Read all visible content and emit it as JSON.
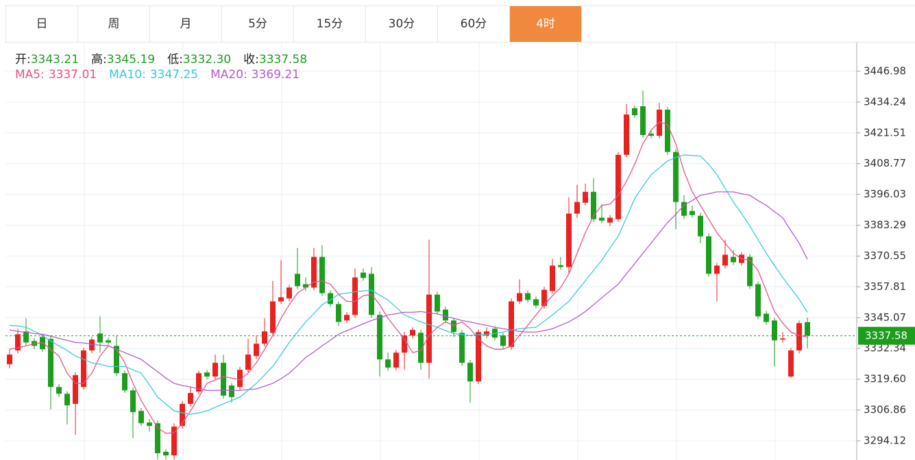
{
  "tabs": {
    "items": [
      "日",
      "周",
      "月",
      "5分",
      "15分",
      "30分",
      "60分",
      "4时"
    ],
    "active": 7
  },
  "chart_data": {
    "type": "candlestick",
    "ohlc_labels": [
      "开:",
      "高:",
      "低:",
      "收:"
    ],
    "last_labels": [
      "3343.21",
      "3345.19",
      "3332.30",
      "3337.58"
    ],
    "up_color": "#e8221f",
    "down_color": "#1c9e1c",
    "price_line_color": "#1c9e1c",
    "ylim": [
      3286.19,
      3458.87
    ],
    "yticks": [
      3294.12,
      3306.86,
      {
        "value": 3319.6,
        "label": "3319.60"
      },
      3332.34,
      3345.07,
      3357.81,
      3370.55,
      3383.29,
      3396.03,
      3408.77,
      3421.51,
      3434.24,
      3446.98
    ],
    "grid": true,
    "open": [
      3325.8,
      3331.5,
      3339.4,
      3335.4,
      3337.1,
      3336.3,
      3316.4,
      3313.6,
      3309.4,
      3316.4,
      3331.5,
      3338.5,
      3335.7,
      3333.4,
      3322.1,
      3315.0,
      3306.5,
      3301.7,
      3301.4,
      3289.6,
      3288.1,
      3300.3,
      3309.4,
      3314.5,
      3322.4,
      3320.7,
      3326.4,
      3317.0,
      3316.4,
      3323.5,
      3329.2,
      3334.3,
      3338.8,
      3351.8,
      3353.0,
      3363.2,
      3358.9,
      3357.5,
      3370.2,
      3355.2,
      3350.7,
      3343.9,
      3346.2,
      3363.7,
      3363.2,
      3346.2,
      3327.8,
      3324.4,
      3330.6,
      3337.7,
      3338.8,
      3326.4,
      3354.6,
      3348.4,
      3343.9,
      3338.8,
      3326.4,
      3318.7,
      3337.7,
      3340.5,
      3337.7,
      3332.9,
      3351.8,
      3355.2,
      3352.7,
      3349.9,
      3356.1,
      3366.8,
      3366.0,
      3388.1,
      3392.6,
      3397.1,
      3386.4,
      3384.4,
      3385.8,
      3412.4,
      3431.7,
      3432.5,
      3421.2,
      3420.3,
      3431.1,
      3413.6,
      3392.9,
      3389.2,
      3387.2,
      3378.7,
      3363.2,
      3366.6,
      3370.2,
      3367.7,
      3370.2,
      3358.9,
      3346.7,
      3343.9,
      3336.0,
      3320.7,
      3331.5,
      3343.21
    ],
    "high": [
      3332.0,
      3340.5,
      3344.8,
      3336.5,
      3338.2,
      3337.7,
      3317.6,
      3314.7,
      3322.4,
      3332.6,
      3337.1,
      3345.6,
      3336.8,
      3337.7,
      3323.2,
      3316.2,
      3307.7,
      3303.1,
      3302.6,
      3290.7,
      3301.4,
      3310.5,
      3316.4,
      3323.2,
      3323.5,
      3329.8,
      3329.8,
      3318.1,
      3324.7,
      3336.3,
      3337.7,
      3344.8,
      3360.3,
      3368.8,
      3358.6,
      3373.9,
      3361.7,
      3373.9,
      3375.0,
      3356.4,
      3351.8,
      3347.3,
      3365.4,
      3365.4,
      3366.0,
      3347.6,
      3330.6,
      3331.7,
      3339.1,
      3341.1,
      3340.0,
      3377.3,
      3355.8,
      3349.6,
      3345.0,
      3340.0,
      3327.5,
      3340.2,
      3341.1,
      3341.6,
      3338.8,
      3353.0,
      3360.9,
      3356.4,
      3353.8,
      3357.8,
      3369.4,
      3370.2,
      3394.9,
      3400.0,
      3400.5,
      3402.8,
      3392.0,
      3387.5,
      3413.6,
      3433.4,
      3432.8,
      3439.0,
      3422.3,
      3433.9,
      3432.2,
      3414.7,
      3395.7,
      3391.5,
      3388.4,
      3379.9,
      3367.7,
      3377.3,
      3373.1,
      3372.2,
      3371.4,
      3360.0,
      3347.9,
      3345.0,
      3339.1,
      3332.6,
      3343.9,
      3345.19
    ],
    "low": [
      3324.1,
      3330.3,
      3333.7,
      3332.0,
      3330.9,
      3307.1,
      3312.2,
      3300.9,
      3296.6,
      3315.3,
      3330.3,
      3330.6,
      3333.7,
      3321.0,
      3313.9,
      3295.2,
      3300.3,
      3298.0,
      3286.4,
      3286.4,
      3286.4,
      3299.2,
      3308.2,
      3313.3,
      3319.6,
      3319.6,
      3311.6,
      3309.9,
      3315.3,
      3322.4,
      3328.1,
      3333.1,
      3337.7,
      3350.7,
      3351.8,
      3356.9,
      3356.1,
      3356.4,
      3354.1,
      3349.6,
      3341.6,
      3342.8,
      3345.0,
      3360.3,
      3345.0,
      3320.7,
      3323.2,
      3323.2,
      3323.5,
      3336.5,
      3323.5,
      3319.8,
      3346.2,
      3342.8,
      3337.1,
      3325.2,
      3309.9,
      3317.6,
      3336.5,
      3335.7,
      3332.3,
      3331.7,
      3350.7,
      3351.3,
      3349.0,
      3348.7,
      3355.0,
      3364.9,
      3363.2,
      3386.4,
      3391.5,
      3384.7,
      3384.1,
      3383.0,
      3384.7,
      3411.3,
      3427.7,
      3419.5,
      3419.2,
      3419.2,
      3412.4,
      3381.6,
      3385.8,
      3386.4,
      3375.9,
      3362.0,
      3351.8,
      3365.4,
      3366.8,
      3366.6,
      3356.9,
      3344.5,
      3342.2,
      3324.9,
      3334.8,
      3320.1,
      3330.3,
      3332.3
    ],
    "close": [
      3329.8,
      3338.2,
      3334.8,
      3333.4,
      3332.0,
      3316.4,
      3313.6,
      3308.8,
      3321.3,
      3331.5,
      3336.0,
      3334.8,
      3334.8,
      3322.1,
      3315.0,
      3306.0,
      3301.4,
      3300.3,
      3289.0,
      3288.1,
      3300.0,
      3309.4,
      3313.9,
      3322.1,
      3320.7,
      3326.4,
      3312.8,
      3312.2,
      3323.5,
      3329.8,
      3334.3,
      3339.4,
      3351.8,
      3353.5,
      3357.5,
      3358.1,
      3357.5,
      3370.2,
      3355.2,
      3350.7,
      3343.3,
      3346.2,
      3361.7,
      3361.5,
      3346.2,
      3327.8,
      3324.4,
      3330.6,
      3337.7,
      3340.0,
      3326.4,
      3354.6,
      3347.6,
      3343.9,
      3339.1,
      3326.4,
      3318.7,
      3339.1,
      3339.4,
      3336.8,
      3333.4,
      3351.8,
      3355.2,
      3352.4,
      3350.1,
      3356.6,
      3366.6,
      3366.0,
      3388.1,
      3392.9,
      3397.1,
      3385.8,
      3385.2,
      3386.4,
      3412.4,
      3429.1,
      3428.8,
      3420.6,
      3420.3,
      3431.1,
      3413.6,
      3392.9,
      3387.2,
      3387.5,
      3378.7,
      3363.2,
      3366.6,
      3371.1,
      3368.0,
      3371.1,
      3358.1,
      3345.6,
      3343.3,
      3335.7,
      3336.5,
      3331.5,
      3342.8,
      3337.58
    ],
    "series": [
      {
        "name": "MA5:",
        "color": "#e8528a",
        "values": [
          3332.0,
          3332.6,
          3333.4,
          3334.3,
          3334.8,
          3332.0,
          3329.2,
          3322.1,
          3317.9,
          3317.9,
          3322.1,
          3329.2,
          3333.4,
          3332.0,
          3326.4,
          3317.9,
          3310.8,
          3305.1,
          3299.5,
          3297.2,
          3297.5,
          3301.4,
          3306.5,
          3312.2,
          3317.9,
          3319.3,
          3320.7,
          3320.1,
          3319.3,
          3322.1,
          3326.4,
          3332.0,
          3337.7,
          3344.8,
          3350.4,
          3355.2,
          3357.5,
          3359.8,
          3360.3,
          3358.9,
          3354.7,
          3351.8,
          3351.8,
          3354.1,
          3354.7,
          3350.4,
          3344.8,
          3340.5,
          3336.3,
          3330.6,
          3331.5,
          3337.7,
          3341.1,
          3343.3,
          3341.9,
          3343.3,
          3340.5,
          3336.3,
          3333.4,
          3332.0,
          3332.0,
          3333.4,
          3337.7,
          3341.9,
          3346.2,
          3350.4,
          3354.1,
          3357.5,
          3363.2,
          3371.7,
          3380.2,
          3387.2,
          3391.5,
          3392.0,
          3395.7,
          3401.4,
          3408.5,
          3417.0,
          3422.6,
          3426.0,
          3424.9,
          3417.0,
          3405.6,
          3397.1,
          3391.5,
          3385.8,
          3380.2,
          3375.9,
          3371.7,
          3369.4,
          3368.8,
          3364.6,
          3356.1,
          3347.6,
          3342.8,
          3339.1,
          3337.7,
          3337.01
        ]
      },
      {
        "name": "MA10:",
        "color": "#3bc9d6",
        "values": [
          3341.9,
          3341.6,
          3341.1,
          3339.4,
          3337.7,
          3335.4,
          3333.4,
          3331.5,
          3329.2,
          3327.8,
          3326.4,
          3325.8,
          3324.9,
          3324.9,
          3324.9,
          3323.5,
          3322.1,
          3317.3,
          3312.2,
          3309.4,
          3306.5,
          3305.7,
          3305.1,
          3305.7,
          3306.5,
          3308.0,
          3309.4,
          3310.8,
          3312.2,
          3315.0,
          3317.9,
          3321.3,
          3324.9,
          3329.8,
          3334.8,
          3339.1,
          3343.3,
          3346.7,
          3350.4,
          3352.4,
          3354.7,
          3355.2,
          3355.8,
          3356.1,
          3356.4,
          3354.4,
          3352.4,
          3349.3,
          3346.2,
          3344.8,
          3343.3,
          3342.2,
          3341.1,
          3339.7,
          3338.5,
          3338.0,
          3337.7,
          3338.0,
          3338.2,
          3338.5,
          3339.1,
          3340.0,
          3340.5,
          3340.8,
          3341.1,
          3343.6,
          3346.2,
          3349.0,
          3351.8,
          3356.1,
          3360.3,
          3364.6,
          3368.8,
          3373.9,
          3378.7,
          3386.4,
          3394.3,
          3399.4,
          3404.2,
          3407.0,
          3409.9,
          3411.3,
          3412.4,
          3412.1,
          3411.9,
          3408.5,
          3404.2,
          3398.6,
          3392.9,
          3388.1,
          3383.0,
          3377.3,
          3371.7,
          3366.6,
          3361.7,
          3357.2,
          3352.7,
          3347.25
        ]
      },
      {
        "name": "MA20:",
        "color": "#b45cc9",
        "values": [
          3340.0,
          3339.4,
          3339.1,
          3338.5,
          3338.2,
          3337.4,
          3336.5,
          3335.7,
          3334.8,
          3334.6,
          3334.0,
          3333.7,
          3333.4,
          3332.0,
          3330.6,
          3329.2,
          3327.8,
          3325.2,
          3322.7,
          3320.1,
          3317.9,
          3317.0,
          3316.4,
          3315.6,
          3315.0,
          3315.0,
          3315.0,
          3315.0,
          3315.0,
          3315.3,
          3315.6,
          3316.7,
          3317.9,
          3319.8,
          3322.1,
          3325.2,
          3328.6,
          3330.9,
          3333.4,
          3335.7,
          3338.2,
          3339.7,
          3341.1,
          3342.5,
          3343.9,
          3345.0,
          3346.2,
          3346.7,
          3347.3,
          3347.3,
          3347.6,
          3347.0,
          3346.7,
          3345.6,
          3344.8,
          3343.9,
          3343.3,
          3342.5,
          3341.9,
          3341.1,
          3340.5,
          3340.0,
          3339.4,
          3339.1,
          3339.1,
          3339.7,
          3340.5,
          3341.9,
          3343.3,
          3345.3,
          3347.6,
          3350.4,
          3353.3,
          3356.1,
          3358.9,
          3363.2,
          3367.4,
          3371.7,
          3375.9,
          3380.2,
          3384.4,
          3387.8,
          3391.5,
          3393.5,
          3395.7,
          3396.3,
          3397.1,
          3397.1,
          3397.1,
          3396.3,
          3395.7,
          3393.5,
          3391.5,
          3388.9,
          3386.4,
          3381.0,
          3375.9,
          3369.21
        ]
      }
    ]
  }
}
